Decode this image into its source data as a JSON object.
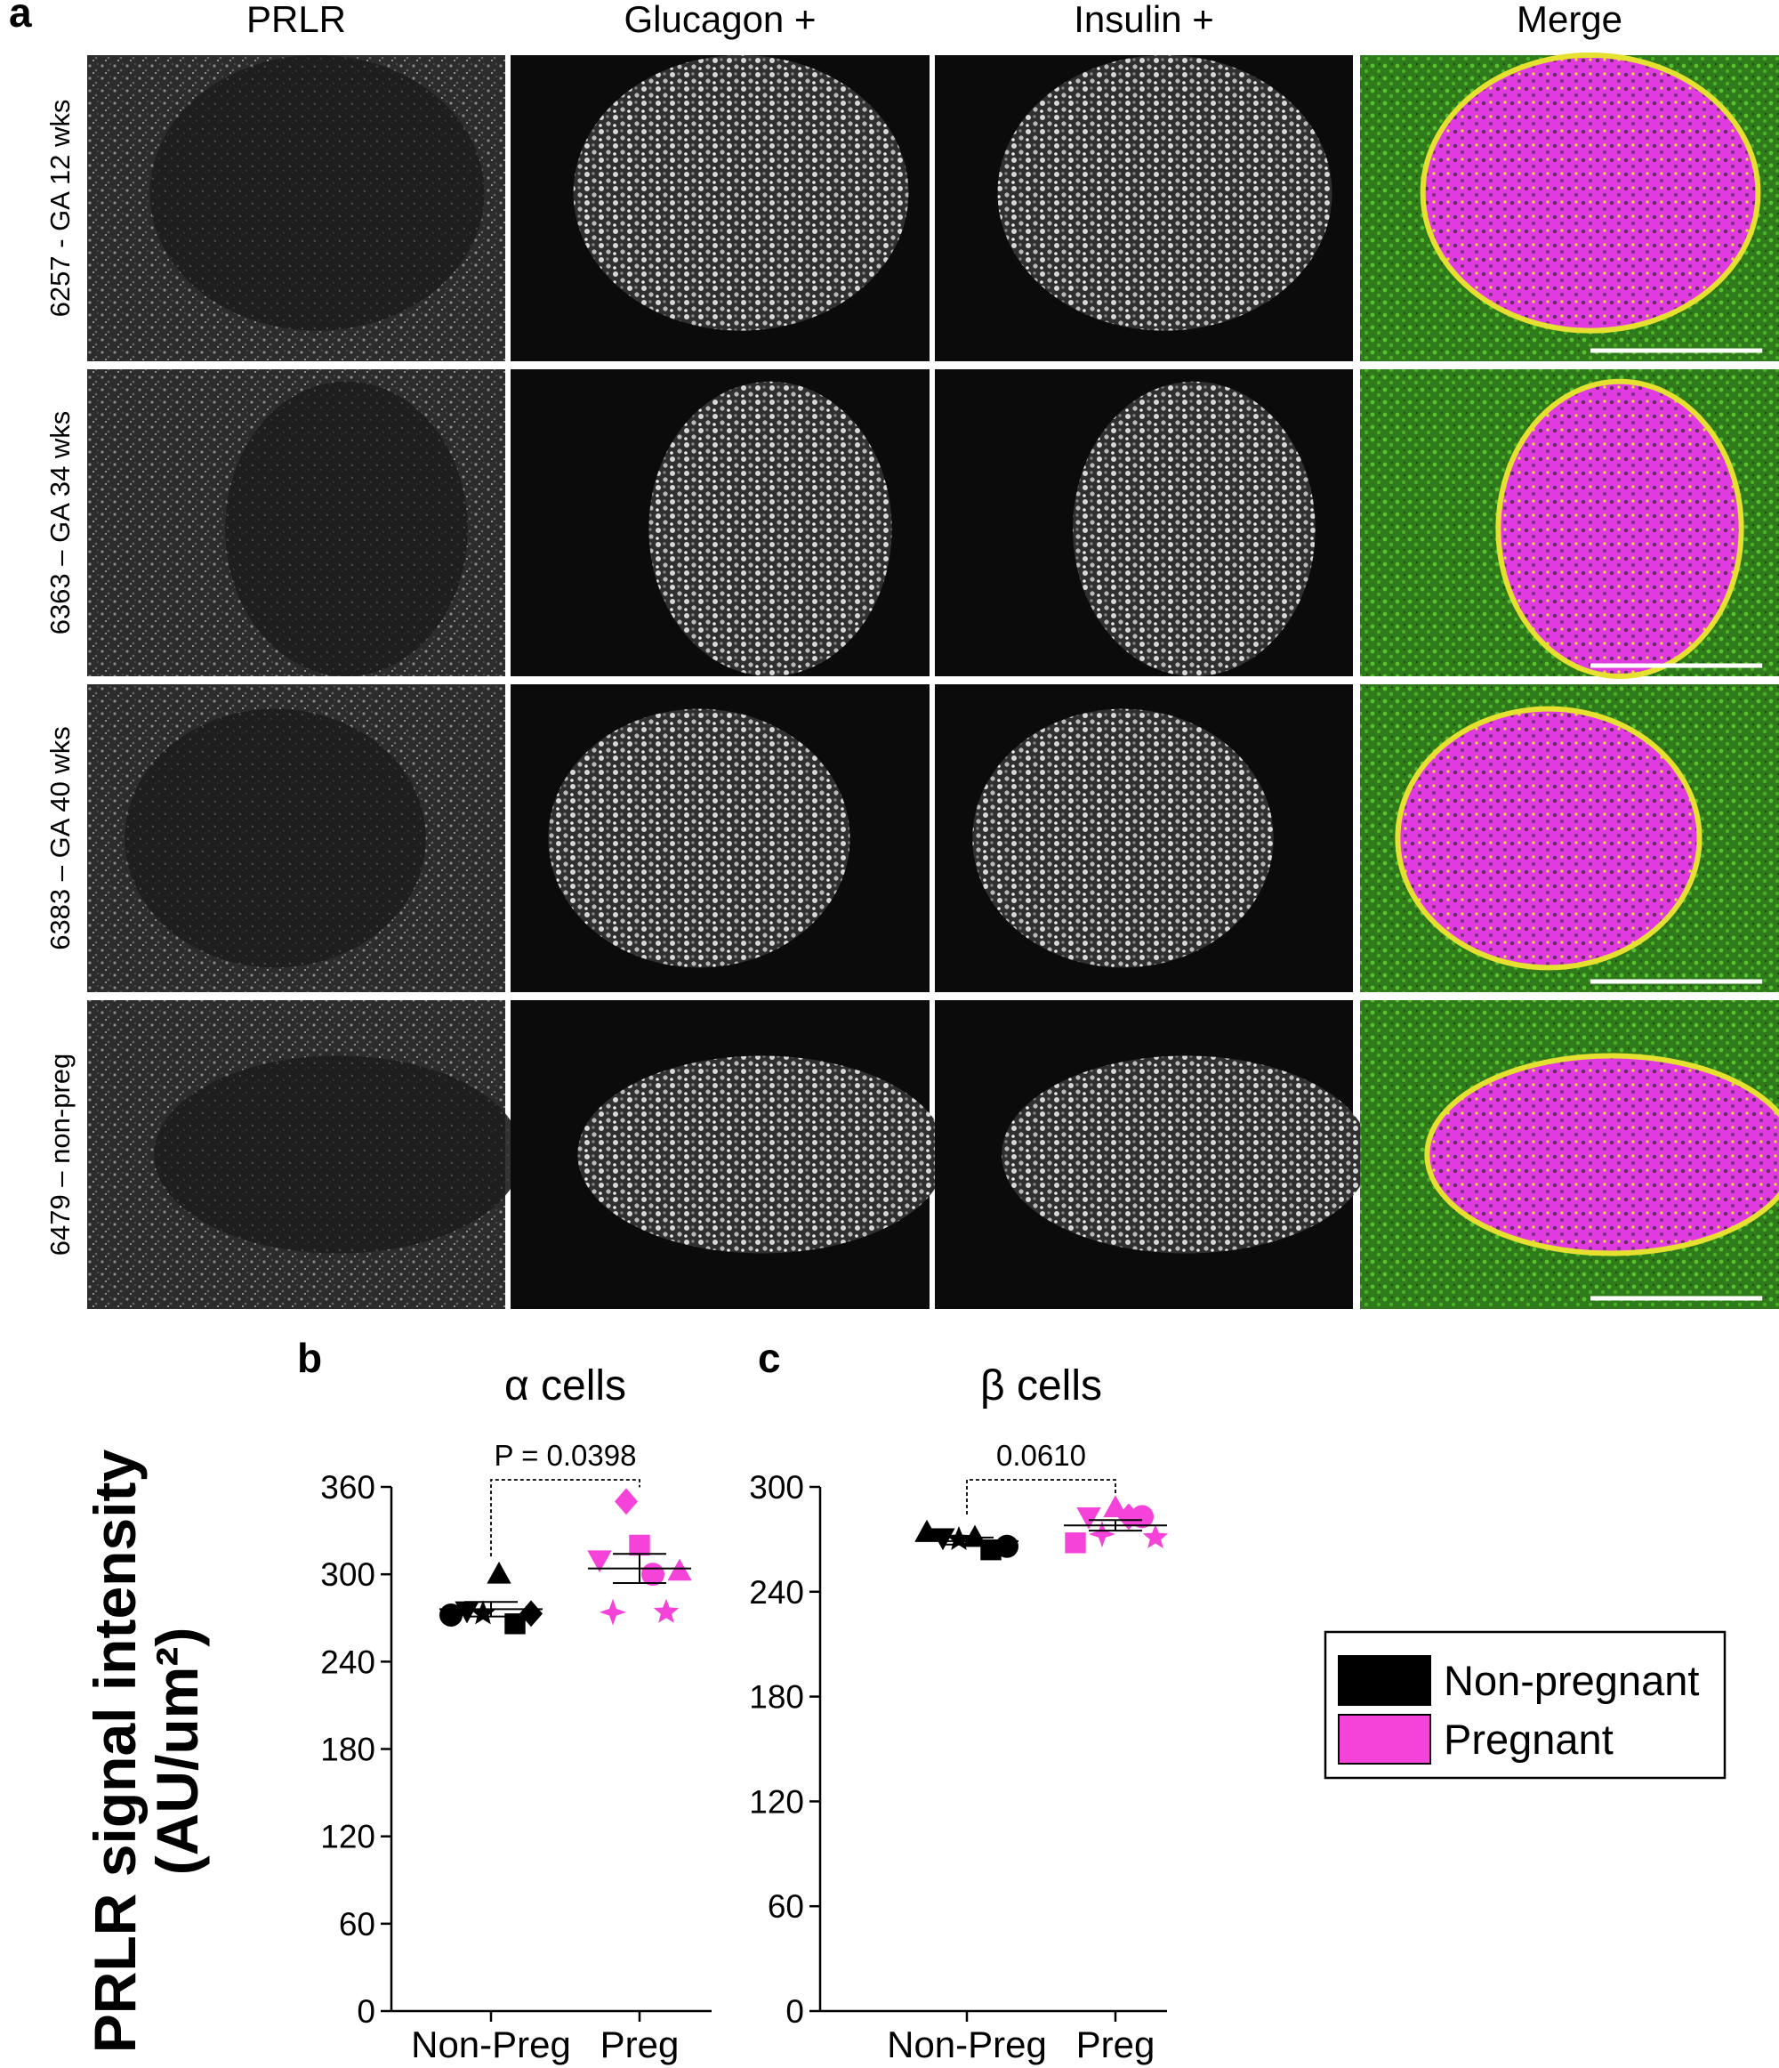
{
  "figure": {
    "panel_labels": [
      "a",
      "b",
      "c"
    ],
    "columns": [
      "PRLR",
      "Glucagon +",
      "Insulin +",
      "Merge"
    ],
    "rows": [
      "6257 - GA 12 wks",
      "6363 – GA 34 wks",
      "6383 – GA 40 wks",
      "6479 – non-preg"
    ],
    "y_axis_title": "PRLR signal intensity",
    "y_axis_unit": "(AU/um²)"
  },
  "chart_data": [
    {
      "type": "scatter",
      "title": "α cells",
      "annotation": "P = 0.0398",
      "categories": [
        "Non-Preg",
        "Preg"
      ],
      "ylim": [
        0,
        360
      ],
      "yticks": [
        0,
        60,
        120,
        180,
        240,
        300,
        360
      ],
      "series": [
        {
          "name": "Non-pregnant",
          "color": "#000000",
          "values": [
            272,
            275,
            273,
            300,
            266,
            273
          ],
          "markers": [
            "circle",
            "triangle-down",
            "star",
            "triangle-up",
            "square",
            "diamond"
          ],
          "mean": 276,
          "sem": 5
        },
        {
          "name": "Pregnant",
          "color": "#f542d9",
          "values": [
            310,
            274,
            350,
            320,
            300,
            274,
            302
          ],
          "markers": [
            "triangle-down",
            "star4",
            "diamond",
            "square",
            "circle",
            "star",
            "triangle-up"
          ],
          "mean": 304,
          "sem": 10
        }
      ]
    },
    {
      "type": "scatter",
      "title": "β cells",
      "annotation": "0.0610",
      "categories": [
        "Non-Preg",
        "Preg"
      ],
      "ylim": [
        0,
        300
      ],
      "yticks": [
        0,
        60,
        120,
        180,
        240,
        300
      ],
      "series": [
        {
          "color": "#000000",
          "values": [
            274,
            271,
            270,
            271,
            264,
            266
          ],
          "markers": [
            "triangle-up",
            "triangle-down",
            "star",
            "triangle-up",
            "square",
            "circle"
          ],
          "mean": 269,
          "sem": 2
        },
        {
          "color": "#f542d9",
          "values": [
            268,
            283,
            273,
            288,
            283,
            283,
            271
          ],
          "markers": [
            "square",
            "triangle-down",
            "star4",
            "triangle-up",
            "diamond",
            "circle",
            "star"
          ],
          "mean": 278,
          "sem": 3
        }
      ]
    }
  ]
}
